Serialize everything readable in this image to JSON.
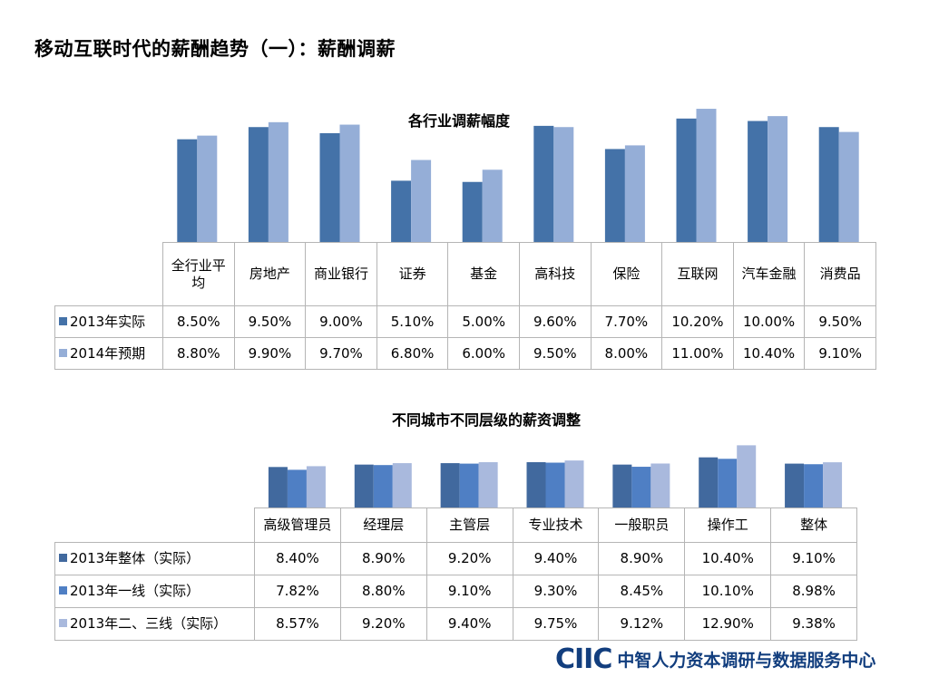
{
  "page": {
    "title": "移动互联时代的薪酬趋势（一）：薪酬调薪"
  },
  "footer": {
    "logo_mark": "CIIC",
    "org_name": "中智人力资本调研与数据服务中心"
  },
  "chart_data": [
    {
      "type": "bar",
      "title": "各行业调薪幅度",
      "unit": "%",
      "categories": [
        "全行业平均",
        "房地产",
        "商业银行",
        "证券",
        "基金",
        "高科技",
        "保险",
        "互联网",
        "汽车金融",
        "消费品"
      ],
      "category_labels": [
        "全行业平\n均",
        "房地产",
        "商业银行",
        "证券",
        "基金",
        "高科技",
        "保险",
        "互联网",
        "汽车金融",
        "消费品"
      ],
      "series": [
        {
          "name": "2013年实际",
          "color": "#4472a8",
          "values": [
            8.5,
            9.5,
            9.0,
            5.1,
            5.0,
            9.6,
            7.7,
            10.2,
            10.0,
            9.5
          ],
          "labels": [
            "8.50%",
            "9.50%",
            "9.00%",
            "5.10%",
            "5.00%",
            "9.60%",
            "7.70%",
            "10.20%",
            "10.00%",
            "9.50%"
          ]
        },
        {
          "name": "2014年预期",
          "color": "#95aed7",
          "values": [
            8.8,
            9.9,
            9.7,
            6.8,
            6.0,
            9.5,
            8.0,
            11.0,
            10.4,
            9.1
          ],
          "labels": [
            "8.80%",
            "9.90%",
            "9.70%",
            "6.80%",
            "6.00%",
            "9.50%",
            "8.00%",
            "11.00%",
            "10.40%",
            "9.10%"
          ]
        }
      ],
      "legend": "data-table",
      "grid": false
    },
    {
      "type": "bar",
      "title": "不同城市不同层级的薪资调整",
      "unit": "%",
      "categories": [
        "高级管理员",
        "经理层",
        "主管层",
        "专业技术",
        "一般职员",
        "操作工",
        "整体"
      ],
      "category_labels": [
        "高级管理员",
        "经理层",
        "主管层",
        "专业技术",
        "一般职员",
        "操作工",
        "整体"
      ],
      "series": [
        {
          "name": "2013年整体（实际）",
          "color": "#41699e",
          "values": [
            8.4,
            8.9,
            9.2,
            9.4,
            8.9,
            10.4,
            9.1
          ],
          "labels": [
            "8.40%",
            "8.90%",
            "9.20%",
            "9.40%",
            "8.90%",
            "10.40%",
            "9.10%"
          ]
        },
        {
          "name": "2013年一线（实际）",
          "color": "#4f7fc4",
          "values": [
            7.82,
            8.8,
            9.1,
            9.3,
            8.45,
            10.1,
            8.98
          ],
          "labels": [
            "7.82%",
            "8.80%",
            "9.10%",
            "9.30%",
            "8.45%",
            "10.10%",
            "8.98%"
          ]
        },
        {
          "name": "2013年二、三线（实际）",
          "color": "#a9b9dd",
          "values": [
            8.57,
            9.2,
            9.4,
            9.75,
            9.12,
            12.9,
            9.38
          ],
          "labels": [
            "8.57%",
            "9.20%",
            "9.40%",
            "9.75%",
            "9.12%",
            "12.90%",
            "9.38%"
          ]
        }
      ],
      "legend": "data-table",
      "grid": false
    }
  ]
}
